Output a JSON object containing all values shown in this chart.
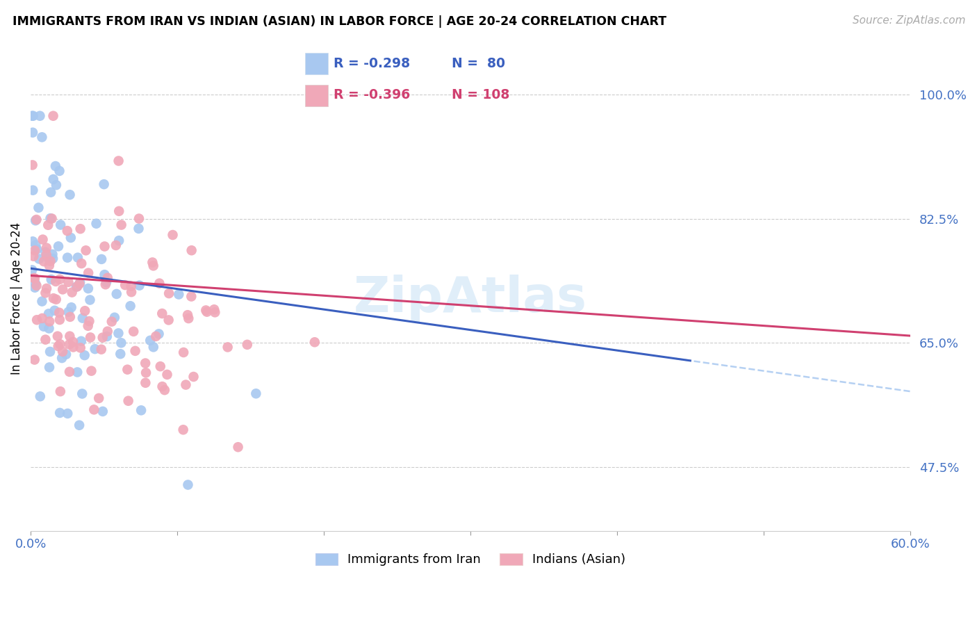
{
  "title": "IMMIGRANTS FROM IRAN VS INDIAN (ASIAN) IN LABOR FORCE | AGE 20-24 CORRELATION CHART",
  "source": "Source: ZipAtlas.com",
  "ylabel": "In Labor Force | Age 20-24",
  "xlim": [
    0.0,
    0.6
  ],
  "ylim": [
    0.385,
    1.04
  ],
  "yticks": [
    0.475,
    0.65,
    0.825,
    1.0
  ],
  "ytick_labels": [
    "47.5%",
    "65.0%",
    "82.5%",
    "100.0%"
  ],
  "iran_color": "#a8c8f0",
  "india_color": "#f0a8b8",
  "iran_line_color": "#3a5fbf",
  "india_line_color": "#d04070",
  "dashed_line_color": "#a8c8f0",
  "legend_R_iran": "R = -0.298",
  "legend_N_iran": "N =  80",
  "legend_R_india": "R = -0.396",
  "legend_N_india": "N = 108",
  "iran_label": "Immigrants from Iran",
  "india_label": "Indians (Asian)",
  "watermark": "ZipAtlas"
}
